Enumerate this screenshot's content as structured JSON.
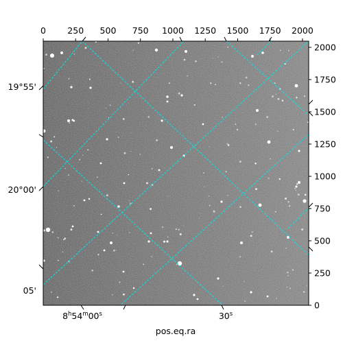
{
  "chart_data": {
    "type": "image",
    "xlabel": "pos.eq.ra",
    "x_pixel_axis": {
      "range": [
        0,
        2048
      ],
      "ticks": [
        0,
        250,
        500,
        750,
        1000,
        1250,
        1500,
        1750,
        2000
      ]
    },
    "y_pixel_axis": {
      "range": [
        0,
        2048
      ],
      "ticks": [
        0,
        250,
        500,
        750,
        1000,
        1250,
        1500,
        1750,
        2000
      ]
    },
    "ra_ticks": [
      {
        "label": "8h54m00s",
        "main": "8",
        "sup1": "h",
        "mid": "54",
        "sup2": "m",
        "tail": "00",
        "sup3": "s"
      },
      {
        "label": "30s",
        "main": "30",
        "sup1": "s"
      }
    ],
    "dec_ticks": [
      {
        "label": "19°55'"
      },
      {
        "label": "20°00'"
      },
      {
        "label": "05'"
      }
    ],
    "grid_color": "#00e5e5",
    "grid_style": "dashed",
    "background": "grayscale star field"
  }
}
